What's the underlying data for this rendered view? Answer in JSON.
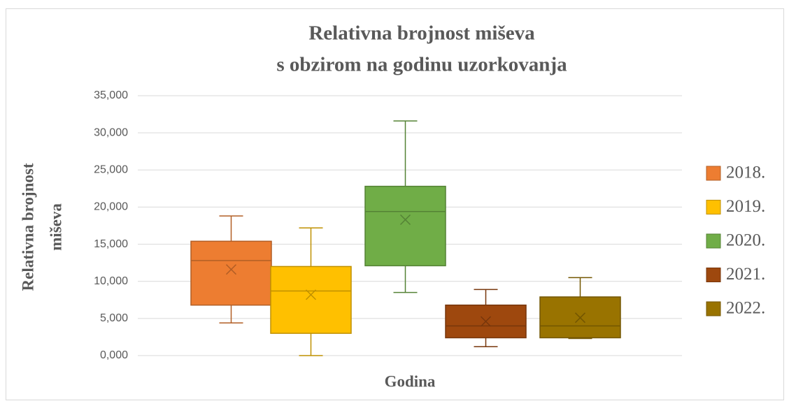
{
  "chart_data": {
    "type": "box",
    "title": [
      "Relativna brojnost miševa",
      "s obzirom na godinu uzorkovanja"
    ],
    "y_label": [
      "Relativna brojnost",
      "miševa"
    ],
    "x_label": "Godina",
    "ylim": [
      0,
      35
    ],
    "yticks": [
      {
        "value": 0,
        "label": "0,000"
      },
      {
        "value": 5,
        "label": "5,000"
      },
      {
        "value": 10,
        "label": "10,000"
      },
      {
        "value": 15,
        "label": "15,000"
      },
      {
        "value": 20,
        "label": "20,000"
      },
      {
        "value": 25,
        "label": "25,000"
      },
      {
        "value": 30,
        "label": "30,000"
      },
      {
        "value": 35,
        "label": "35,000"
      }
    ],
    "grid": true,
    "legend": "right",
    "series": [
      {
        "name": "2018.",
        "color": "#ed7d31",
        "min": 4.4,
        "q1": 6.8,
        "median": 12.8,
        "q3": 15.4,
        "max": 18.8,
        "mean": 11.6
      },
      {
        "name": "2019.",
        "color": "#ffc000",
        "min": 0,
        "q1": 3.0,
        "median": 8.7,
        "q3": 12.0,
        "max": 17.2,
        "mean": 8.2
      },
      {
        "name": "2020.",
        "color": "#70ad47",
        "min": 8.5,
        "q1": 12.1,
        "median": 19.4,
        "q3": 22.8,
        "max": 31.6,
        "mean": 18.3
      },
      {
        "name": "2021.",
        "color": "#9e480e",
        "min": 1.2,
        "q1": 2.4,
        "median": 4.0,
        "q3": 6.8,
        "max": 8.9,
        "mean": 4.6
      },
      {
        "name": "2022.",
        "color": "#997300",
        "min": 2.3,
        "q1": 2.4,
        "median": 4.0,
        "q3": 7.9,
        "max": 10.5,
        "mean": 5.1
      }
    ]
  }
}
